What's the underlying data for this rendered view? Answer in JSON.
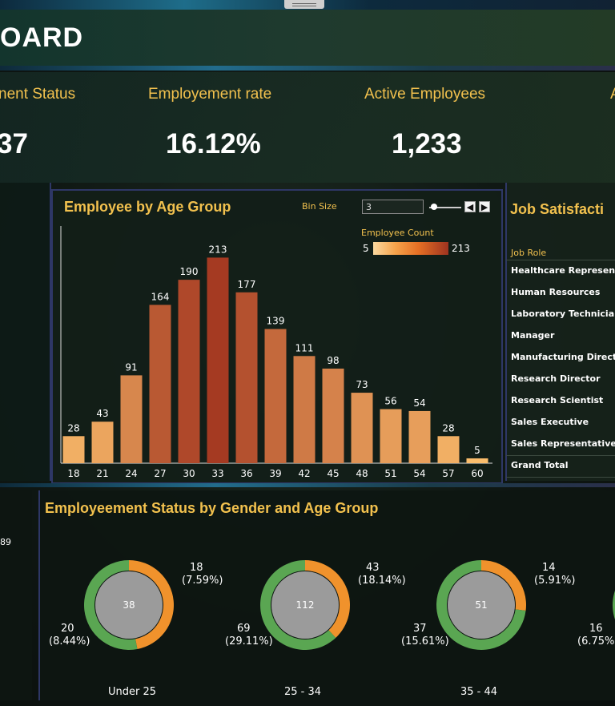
{
  "header": {
    "title": "OARD"
  },
  "kpis": [
    {
      "label": "nent Status",
      "value": "37"
    },
    {
      "label": "Employement rate",
      "value": "16.12%"
    },
    {
      "label": "Active Employees",
      "value": "1,233"
    },
    {
      "label": "A",
      "value": ""
    }
  ],
  "age_chart": {
    "title": "Employee by Age Group",
    "bin_size_label": "Bin Size",
    "bin_size_value": "3",
    "legend_title": "Employee Count",
    "legend_min": "5",
    "legend_max": "213",
    "prev_icon": "chevron-left-icon",
    "next_icon": "chevron-right-icon"
  },
  "chart_data": {
    "type": "bar",
    "title": "Employee by Age Group",
    "categories": [
      "18",
      "21",
      "24",
      "27",
      "30",
      "33",
      "36",
      "39",
      "42",
      "45",
      "48",
      "51",
      "54",
      "57",
      "60"
    ],
    "values": [
      28,
      43,
      91,
      164,
      190,
      213,
      177,
      139,
      111,
      98,
      73,
      56,
      54,
      28,
      5
    ],
    "color_scale": {
      "min": 5,
      "max": 213,
      "low": "#fbbd6c",
      "high": "#a53a22"
    },
    "xlabel": "",
    "ylabel": "",
    "ylim": [
      0,
      220
    ]
  },
  "job_table": {
    "title": "Job Satisfacti",
    "header": "Job Role",
    "rows": [
      "Healthcare Representa",
      "Human Resources",
      "Laboratory Technician",
      "Manager",
      "Manufacturing Director",
      "Research Director",
      "Research Scientist",
      "Sales Executive",
      "Sales Representative",
      "Grand Total"
    ]
  },
  "left_value": "89",
  "status_chart": {
    "title": "Employeement Status by Gender and Age Group",
    "groups": [
      {
        "name": "Under 25",
        "center": "38",
        "orange_label": "18",
        "orange_pct": "(7.59%)",
        "green_label": "20",
        "green_pct": "(8.44%)",
        "orange_share": 0.47
      },
      {
        "name": "25 - 34",
        "center": "112",
        "orange_label": "43",
        "orange_pct": "(18.14%)",
        "green_label": "69",
        "green_pct": "(29.11%)",
        "orange_share": 0.38
      },
      {
        "name": "35 - 44",
        "center": "51",
        "orange_label": "14",
        "orange_pct": "(5.91%)",
        "green_label": "37",
        "green_pct": "(15.61%)",
        "orange_share": 0.27
      },
      {
        "name": "",
        "center": "",
        "orange_label": "",
        "orange_pct": "",
        "green_label": "16",
        "green_pct": "(6.75%)",
        "orange_share": 0
      }
    ],
    "colors": {
      "orange": "#f0922c",
      "green": "#5aa652",
      "center": "#9b9b9b"
    }
  }
}
